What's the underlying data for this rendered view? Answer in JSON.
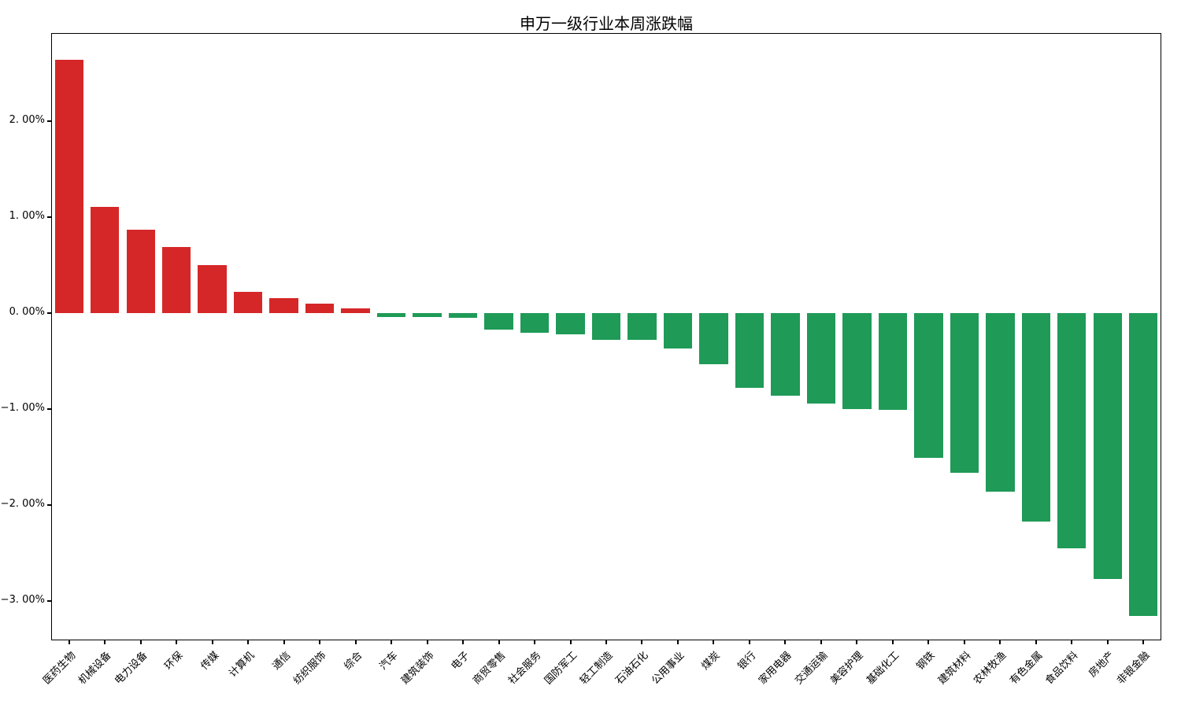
{
  "figure": {
    "background": "#ffffff"
  },
  "chart_data": {
    "type": "bar",
    "title": "申万一级行业本周涨跌幅",
    "categories": [
      "医药生物",
      "机械设备",
      "电力设备",
      "环保",
      "传媒",
      "计算机",
      "通信",
      "纺织服饰",
      "综合",
      "汽车",
      "建筑装饰",
      "电子",
      "商贸零售",
      "社会服务",
      "国防军工",
      "轻工制造",
      "石油石化",
      "公用事业",
      "煤炭",
      "银行",
      "家用电器",
      "交通运输",
      "美容护理",
      "基础化工",
      "钢铁",
      "建筑材料",
      "农林牧渔",
      "有色金属",
      "食品饮料",
      "房地产",
      "非银金融"
    ],
    "values": [
      2.64,
      1.11,
      0.87,
      0.69,
      0.5,
      0.22,
      0.16,
      0.1,
      0.05,
      -0.04,
      -0.04,
      -0.05,
      -0.17,
      -0.2,
      -0.22,
      -0.28,
      -0.28,
      -0.37,
      -0.53,
      -0.78,
      -0.86,
      -0.94,
      -1.0,
      -1.01,
      -1.51,
      -1.66,
      -1.86,
      -2.17,
      -2.45,
      -2.77,
      -3.16
    ],
    "unit": "%",
    "xlabel": "",
    "ylabel": "",
    "ylim": [
      -3.41,
      2.92
    ],
    "yticks": [
      2,
      1,
      0,
      -1,
      -2,
      -3
    ],
    "ytick_labels": [
      "2. 00%",
      "1. 00%",
      "0. 00%",
      "−1. 00%",
      "−2. 00%",
      "−3. 00%"
    ],
    "grid": false,
    "legend": false,
    "bar_color_positive": "#d62728",
    "bar_color_negative": "#1f9a57",
    "axis_color": "#000000"
  }
}
